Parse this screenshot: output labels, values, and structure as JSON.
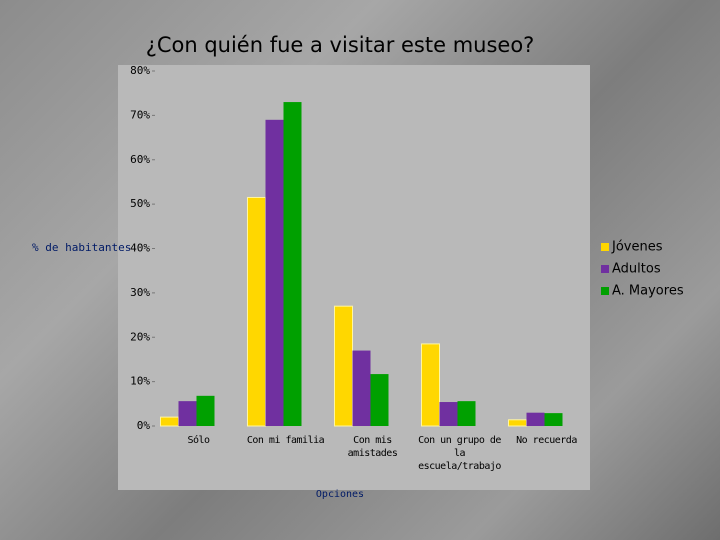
{
  "chart_data": {
    "type": "bar",
    "title": "¿Con quién fue a visitar este museo?",
    "y_label": "% de habitantes",
    "x_label": "Opciones",
    "categories": [
      "Sólo",
      "Con mi familia",
      "Con mis amistades",
      "Con un grupo de la escuela/trabajo",
      "No recuerda"
    ],
    "series": [
      {
        "name": "Jóvenes",
        "color": "#ffd700",
        "values": [
          2,
          51.5,
          27,
          18.5,
          1.4
        ]
      },
      {
        "name": "Adultos",
        "color": "#7030a0",
        "values": [
          5.6,
          69,
          17,
          5.4,
          3
        ]
      },
      {
        "name": "A. Mayores",
        "color": "#00a000",
        "values": [
          6.8,
          73,
          11.7,
          5.6,
          2.9
        ]
      }
    ],
    "ylim": [
      0,
      80
    ],
    "yticks": [
      {
        "value": 0,
        "label": "0%"
      },
      {
        "value": 10,
        "label": "10%"
      },
      {
        "value": 20,
        "label": "20%"
      },
      {
        "value": 30,
        "label": "30%"
      },
      {
        "value": 40,
        "label": "40%"
      },
      {
        "value": 50,
        "label": "50%"
      },
      {
        "value": 60,
        "label": "60%"
      },
      {
        "value": 70,
        "label": "70%"
      },
      {
        "value": 80,
        "label": "80%"
      }
    ],
    "legend": "right"
  }
}
